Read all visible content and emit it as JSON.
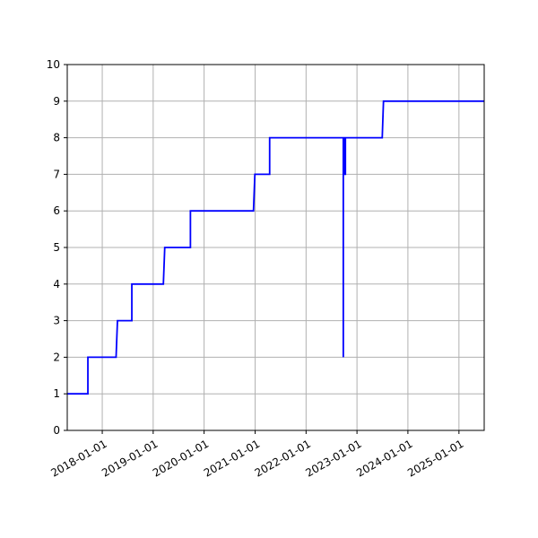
{
  "chart_data": {
    "type": "line",
    "title": "",
    "xlabel": "",
    "ylabel": "",
    "xlim": [
      "2017-04-25",
      "2025-07-01"
    ],
    "ylim": [
      0,
      10
    ],
    "y_ticks": [
      0,
      1,
      2,
      3,
      4,
      5,
      6,
      7,
      8,
      9,
      10
    ],
    "x_ticks": [
      "2018-01-01",
      "2019-01-01",
      "2020-01-01",
      "2021-01-01",
      "2022-01-01",
      "2023-01-01",
      "2024-01-01",
      "2025-01-01"
    ],
    "grid": true,
    "series": [
      {
        "color": "#0000ff",
        "points": [
          {
            "x": "2017-04-25",
            "y": 1
          },
          {
            "x": "2017-09-20",
            "y": 1
          },
          {
            "x": "2017-09-20",
            "y": 2
          },
          {
            "x": "2018-04-10",
            "y": 2
          },
          {
            "x": "2018-04-20",
            "y": 3
          },
          {
            "x": "2018-08-01",
            "y": 3
          },
          {
            "x": "2018-08-01",
            "y": 4
          },
          {
            "x": "2019-03-15",
            "y": 4
          },
          {
            "x": "2019-03-25",
            "y": 5
          },
          {
            "x": "2019-09-25",
            "y": 5
          },
          {
            "x": "2019-09-25",
            "y": 6
          },
          {
            "x": "2020-12-20",
            "y": 6
          },
          {
            "x": "2020-12-30",
            "y": 7
          },
          {
            "x": "2021-04-15",
            "y": 7
          },
          {
            "x": "2021-04-15",
            "y": 8
          },
          {
            "x": "2022-09-25",
            "y": 8
          },
          {
            "x": "2022-09-25",
            "y": 2
          },
          {
            "x": "2022-09-25",
            "y": 8
          },
          {
            "x": "2022-10-02",
            "y": 8
          },
          {
            "x": "2022-10-02",
            "y": 7
          },
          {
            "x": "2022-10-05",
            "y": 7
          },
          {
            "x": "2022-10-05",
            "y": 8
          },
          {
            "x": "2022-10-08",
            "y": 8
          },
          {
            "x": "2022-10-08",
            "y": 7
          },
          {
            "x": "2022-10-10",
            "y": 7
          },
          {
            "x": "2022-10-10",
            "y": 8
          },
          {
            "x": "2023-07-01",
            "y": 8
          },
          {
            "x": "2023-07-10",
            "y": 9
          },
          {
            "x": "2025-07-01",
            "y": 9
          }
        ]
      }
    ]
  }
}
